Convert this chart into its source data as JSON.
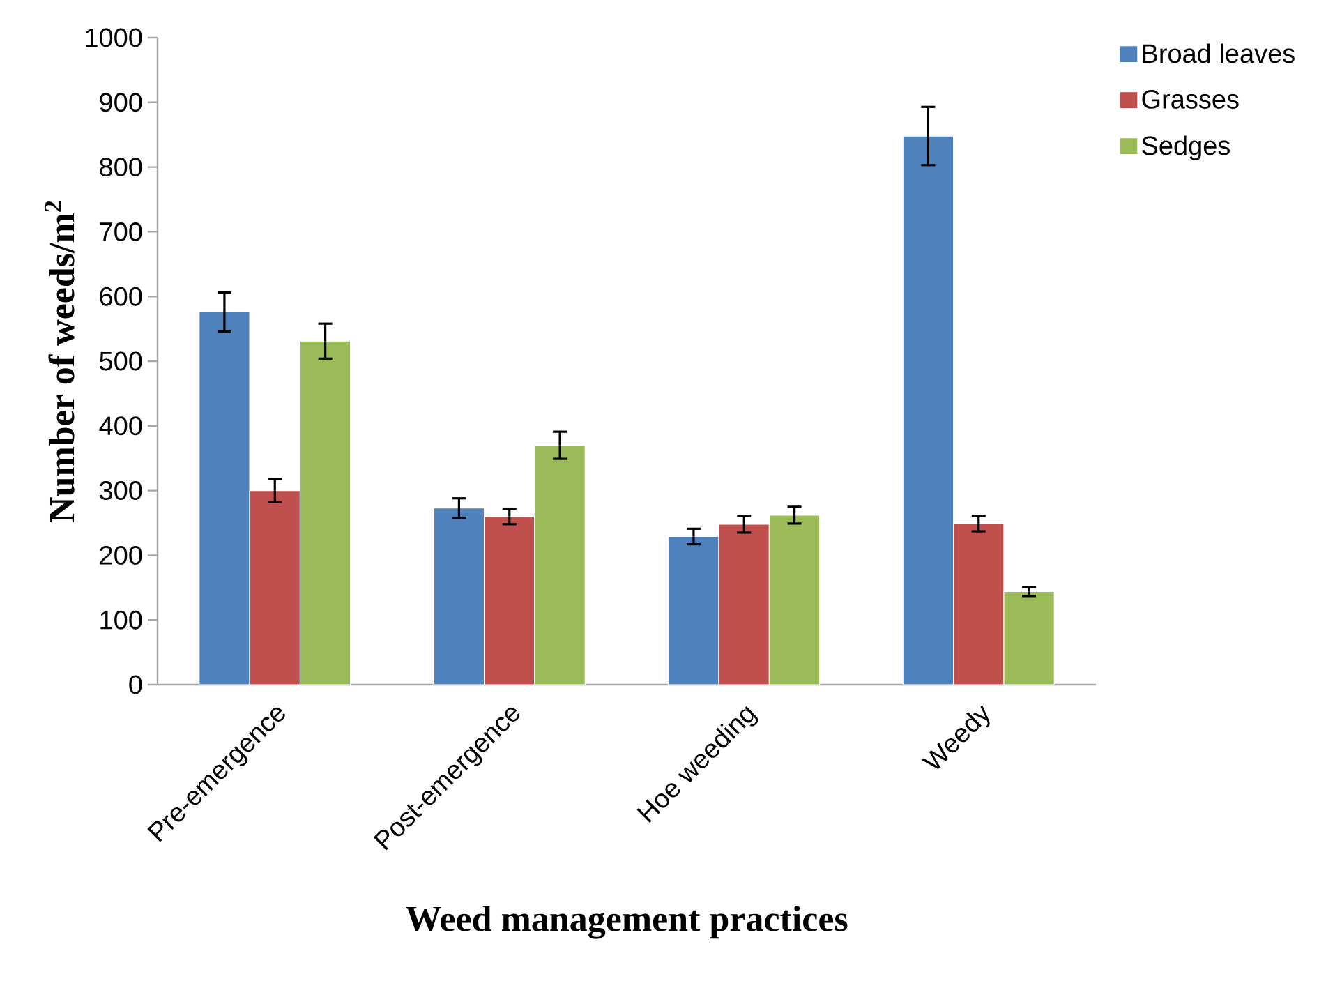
{
  "chart_data": {
    "type": "bar",
    "xlabel": "Weed management practices",
    "ylabel": "Number of weeds/m$^{2}$",
    "categories": [
      "Pre-emergence",
      "Post-emergence",
      "Hoe weeding",
      "Weedy"
    ],
    "series": [
      {
        "name": "Broad leaves",
        "color": "#4f81bd",
        "values": [
          576,
          273,
          229,
          848
        ],
        "errors": [
          30,
          15,
          12,
          45
        ]
      },
      {
        "name": "Grasses",
        "color": "#c0504d",
        "values": [
          300,
          260,
          248,
          249
        ],
        "errors": [
          18,
          12,
          13,
          12
        ]
      },
      {
        "name": "Sedges",
        "color": "#9bbb59",
        "values": [
          531,
          370,
          262,
          144
        ],
        "errors": [
          27,
          21,
          13,
          7
        ]
      }
    ],
    "ylim": [
      0,
      1000
    ],
    "yticks": [
      0,
      100,
      200,
      300,
      400,
      500,
      600,
      700,
      800,
      900,
      1000
    ],
    "grid": false,
    "legend": "right"
  }
}
